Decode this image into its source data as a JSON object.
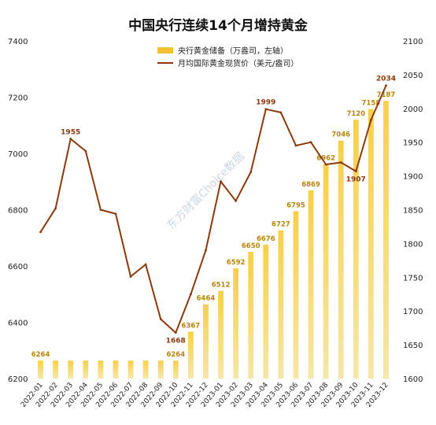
{
  "chart_data": {
    "type": "bar+line",
    "title": "中国央行连续14个月增持黄金",
    "watermark": "东方财富Choice数据",
    "categories": [
      "2022-01",
      "2022-02",
      "2022-03",
      "2022-04",
      "2022-05",
      "2022-06",
      "2022-07",
      "2022-08",
      "2022-09",
      "2022-10",
      "2022-11",
      "2022-12",
      "2023-01",
      "2023-02",
      "2023-03",
      "2023-04",
      "2023-05",
      "2023-06",
      "2023-07",
      "2023-08",
      "2023-09",
      "2023-10",
      "2023-11",
      "2023-12"
    ],
    "left_axis": {
      "ylim": [
        6200,
        7400
      ],
      "ticks": [
        6200,
        6400,
        6600,
        6800,
        7000,
        7200,
        7400
      ]
    },
    "right_axis": {
      "ylim": [
        1600,
        2100
      ],
      "ticks": [
        1600,
        1650,
        1700,
        1750,
        1800,
        1850,
        1900,
        1950,
        2000,
        2050,
        2100
      ]
    },
    "series": [
      {
        "name": "央行黄金储备（万盎司，左轴）",
        "kind": "bar",
        "axis": "left",
        "color": "#f2c230",
        "values": [
          6264,
          6264,
          6264,
          6264,
          6264,
          6264,
          6264,
          6264,
          6264,
          6264,
          6367,
          6464,
          6512,
          6592,
          6650,
          6676,
          6727,
          6795,
          6869,
          6962,
          7046,
          7120,
          7158,
          7187
        ],
        "labeled_indices": [
          0,
          9,
          10,
          11,
          12,
          13,
          14,
          15,
          16,
          17,
          18,
          19,
          20,
          21,
          22,
          23
        ]
      },
      {
        "name": "月均国际黄金现货价（美元/盎司）",
        "kind": "line",
        "axis": "right",
        "color": "#8b3a0e",
        "values": [
          1817,
          1852,
          1955,
          1937,
          1850,
          1844,
          1751,
          1769,
          1688,
          1668,
          1725,
          1790,
          1892,
          1863,
          1906,
          1999,
          1994,
          1945,
          1950,
          1917,
          1920,
          1907,
          1983,
          2034
        ],
        "labeled_indices": [
          2,
          9,
          15,
          21,
          23
        ]
      }
    ],
    "bar_label_texts": [
      "6264",
      "6264",
      "6367",
      "6464",
      "6512",
      "6592",
      "6650",
      "6676",
      "6727",
      "6795",
      "6869",
      "6962",
      "7046",
      "7120",
      "7158",
      "7187"
    ],
    "line_label_texts": [
      "1955",
      "1668",
      "1999",
      "1907",
      "2034"
    ]
  }
}
